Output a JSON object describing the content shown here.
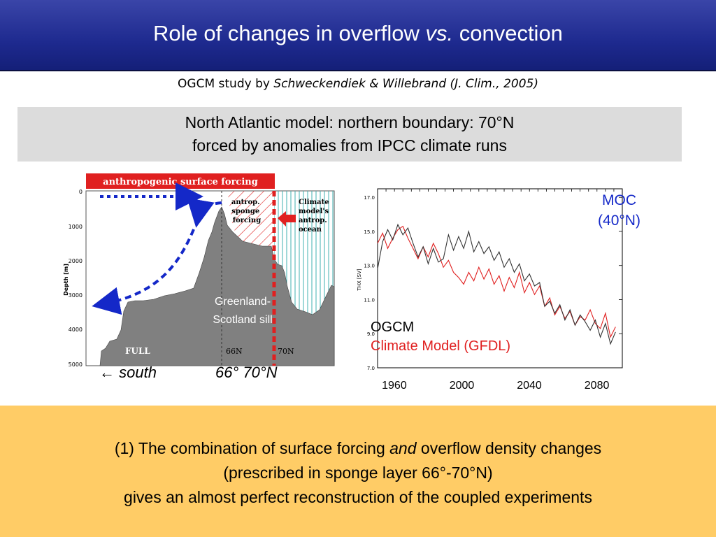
{
  "title": {
    "pre": "Role of changes in overflow ",
    "italic": "vs.",
    "post": " convection"
  },
  "reference": {
    "pre": "OGCM study by ",
    "italic": "Schweckendiek & Willebrand (J. Clim., 2005)"
  },
  "info_box": {
    "line1": "North Atlantic model: northern boundary: 70°N",
    "line2": "forced by anomalies from IPCC climate runs"
  },
  "left_figure": {
    "forcing_banner": "anthropogenic surface forcing",
    "sponge_label": [
      "antrop.",
      "sponge",
      "forcing"
    ],
    "climate_label": [
      "Climate",
      "model's",
      "antrop.",
      "ocean"
    ],
    "y_axis_title": "Depth [m]",
    "y_ticks": [
      "0",
      "1000",
      "2000",
      "3000",
      "4000",
      "5000"
    ],
    "sill_label": [
      "Greenland-",
      "Scotland sill"
    ],
    "full_label": "FULL",
    "lat66": "66N",
    "lat70": "70N",
    "south_label": "← south",
    "lat_label": "66°  70°N"
  },
  "chart_data": {
    "type": "line",
    "ylabel": "THX [SV]",
    "y_ticks": [
      "7.0",
      "9.0",
      "11.0",
      "13.0",
      "15.0",
      "17.0"
    ],
    "ylim": [
      7,
      17.5
    ],
    "xlim": [
      1950,
      2095
    ],
    "x_ticks": [
      "1960",
      "2000",
      "2040",
      "2080"
    ],
    "series": [
      {
        "name": "OGCM",
        "color": "#333333",
        "x": [
          1950,
          1953,
          1956,
          1959,
          1962,
          1965,
          1968,
          1971,
          1974,
          1977,
          1980,
          1983,
          1986,
          1989,
          1992,
          1995,
          1998,
          2001,
          2004,
          2007,
          2010,
          2013,
          2016,
          2019,
          2022,
          2025,
          2028,
          2031,
          2034,
          2037,
          2040,
          2043,
          2046,
          2049,
          2052,
          2055,
          2058,
          2061,
          2064,
          2067,
          2070,
          2073,
          2076,
          2079,
          2082,
          2085,
          2088,
          2091
        ],
        "y": [
          12.8,
          14.4,
          15.1,
          14.5,
          15.4,
          14.8,
          15.2,
          14.3,
          13.5,
          14.1,
          13.1,
          14.0,
          13.2,
          13.4,
          14.8,
          13.9,
          14.7,
          14.0,
          15.0,
          13.8,
          14.4,
          13.7,
          14.1,
          13.3,
          13.8,
          12.9,
          13.4,
          12.6,
          13.1,
          12.1,
          12.5,
          11.8,
          12.0,
          10.6,
          10.9,
          10.2,
          10.7,
          9.8,
          10.4,
          9.5,
          10.1,
          9.7,
          9.2,
          9.8,
          8.8,
          9.6,
          8.4,
          9.1
        ]
      },
      {
        "name": "Climate Model (GFDL)",
        "color": "#e02020",
        "x": [
          1950,
          1953,
          1956,
          1959,
          1962,
          1965,
          1968,
          1971,
          1974,
          1977,
          1980,
          1983,
          1986,
          1989,
          1992,
          1995,
          1998,
          2001,
          2004,
          2007,
          2010,
          2013,
          2016,
          2019,
          2022,
          2025,
          2028,
          2031,
          2034,
          2037,
          2040,
          2043,
          2046,
          2049,
          2052,
          2055,
          2058,
          2061,
          2064,
          2067,
          2070,
          2073,
          2076,
          2079,
          2082,
          2085,
          2088,
          2091
        ],
        "y": [
          14.3,
          14.9,
          14.0,
          14.6,
          15.1,
          15.3,
          14.6,
          14.0,
          13.4,
          14.1,
          13.5,
          14.3,
          13.7,
          12.9,
          13.3,
          12.6,
          12.3,
          11.9,
          12.6,
          12.1,
          12.9,
          12.2,
          12.8,
          11.9,
          12.4,
          11.5,
          12.3,
          11.7,
          12.6,
          11.4,
          12.0,
          11.3,
          11.8,
          10.6,
          11.1,
          10.1,
          10.6,
          9.9,
          10.3,
          9.5,
          10.0,
          9.8,
          10.4,
          9.6,
          9.3,
          10.2,
          8.8,
          9.4
        ]
      }
    ]
  },
  "moc_label": {
    "line1": "MOC",
    "line2": "(40°N)"
  },
  "legend": {
    "ogcm": "OGCM",
    "climate": "Climate Model (GFDL)"
  },
  "conclusion": {
    "line1_pre": "(1)  The combination of surface forcing ",
    "line1_italic": "and",
    "line1_post": " overflow density changes",
    "line2": "(prescribed in sponge layer 66°-70°N)",
    "line3": "gives an almost perfect reconstruction of the coupled experiments"
  },
  "colors": {
    "title_bg": "#1e2a8f",
    "grey_box": "#dcdcdc",
    "bottom_panel": "#ffcc66",
    "moc_text": "#1428c8",
    "forcing_red": "#e02020",
    "arrow_blue": "#1428c8"
  }
}
